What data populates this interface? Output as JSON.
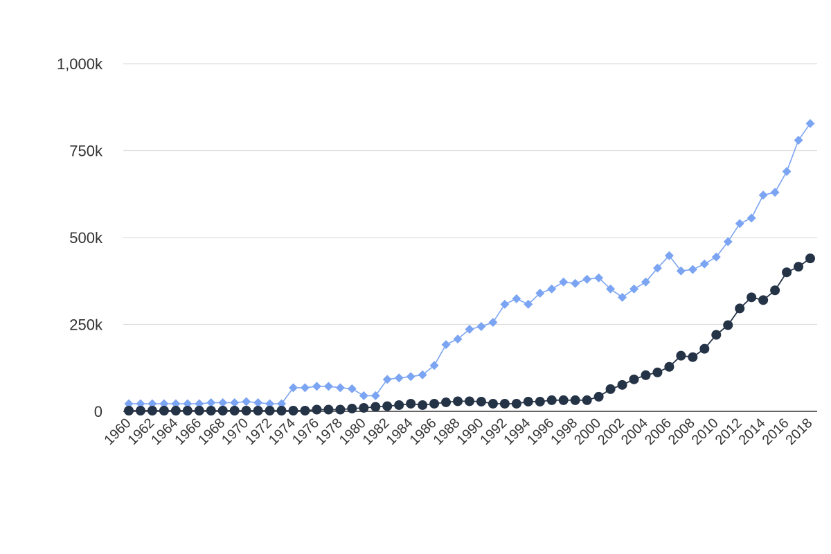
{
  "chart_data": {
    "type": "line",
    "title": "",
    "xlabel": "",
    "ylabel": "",
    "x": [
      1960,
      1961,
      1962,
      1963,
      1964,
      1965,
      1966,
      1967,
      1968,
      1969,
      1970,
      1971,
      1972,
      1973,
      1974,
      1975,
      1976,
      1977,
      1978,
      1979,
      1980,
      1981,
      1982,
      1983,
      1984,
      1985,
      1986,
      1987,
      1988,
      1989,
      1990,
      1991,
      1992,
      1993,
      1994,
      1995,
      1996,
      1997,
      1998,
      1999,
      2000,
      2001,
      2002,
      2003,
      2004,
      2005,
      2006,
      2007,
      2008,
      2009,
      2010,
      2011,
      2012,
      2013,
      2014,
      2015,
      2016,
      2017,
      2018
    ],
    "x_tick_labels": [
      "1960",
      "1962",
      "1964",
      "1966",
      "1968",
      "1970",
      "1972",
      "1974",
      "1976",
      "1978",
      "1980",
      "1982",
      "1984",
      "1986",
      "1988",
      "1990",
      "1992",
      "1994",
      "1996",
      "1998",
      "2000",
      "2002",
      "2004",
      "2006",
      "2008",
      "2010",
      "2012",
      "2014",
      "2016",
      "2018"
    ],
    "ylim": [
      0,
      1000000
    ],
    "y_ticks": [
      0,
      250000,
      500000,
      750000,
      1000000
    ],
    "y_tick_labels": [
      "0",
      "250k",
      "500k",
      "750k",
      "1,000k"
    ],
    "grid": true,
    "legend": "none",
    "series": [
      {
        "color": "#7ba4f2",
        "marker": "diamond",
        "values": [
          22000,
          22000,
          22000,
          22000,
          22000,
          22000,
          22000,
          25000,
          25000,
          25000,
          28000,
          25000,
          22000,
          22000,
          68000,
          68000,
          72000,
          72000,
          68000,
          65000,
          45000,
          45000,
          92000,
          96000,
          100000,
          105000,
          132000,
          192000,
          208000,
          236000,
          244000,
          256000,
          308000,
          324000,
          308000,
          340000,
          352000,
          372000,
          368000,
          380000,
          384000,
          352000,
          328000,
          352000,
          372000,
          412000,
          448000,
          404000,
          408000,
          424000,
          444000,
          488000,
          540000,
          556000,
          622000,
          630000,
          690000,
          780000,
          828000
        ]
      },
      {
        "color": "#253347",
        "marker": "circle",
        "values": [
          2000,
          2000,
          2000,
          2000,
          2000,
          2000,
          2000,
          2000,
          2000,
          2000,
          2000,
          2000,
          2000,
          2000,
          2000,
          2000,
          5000,
          5000,
          5000,
          8000,
          10000,
          13000,
          15000,
          18000,
          22000,
          18000,
          22000,
          26000,
          29000,
          29000,
          28000,
          22000,
          22000,
          22000,
          28000,
          28000,
          32000,
          32000,
          32000,
          32000,
          42000,
          64000,
          76000,
          92000,
          104000,
          112000,
          128000,
          160000,
          156000,
          180000,
          220000,
          248000,
          296000,
          328000,
          320000,
          348000,
          400000,
          416000,
          440000
        ]
      }
    ]
  }
}
